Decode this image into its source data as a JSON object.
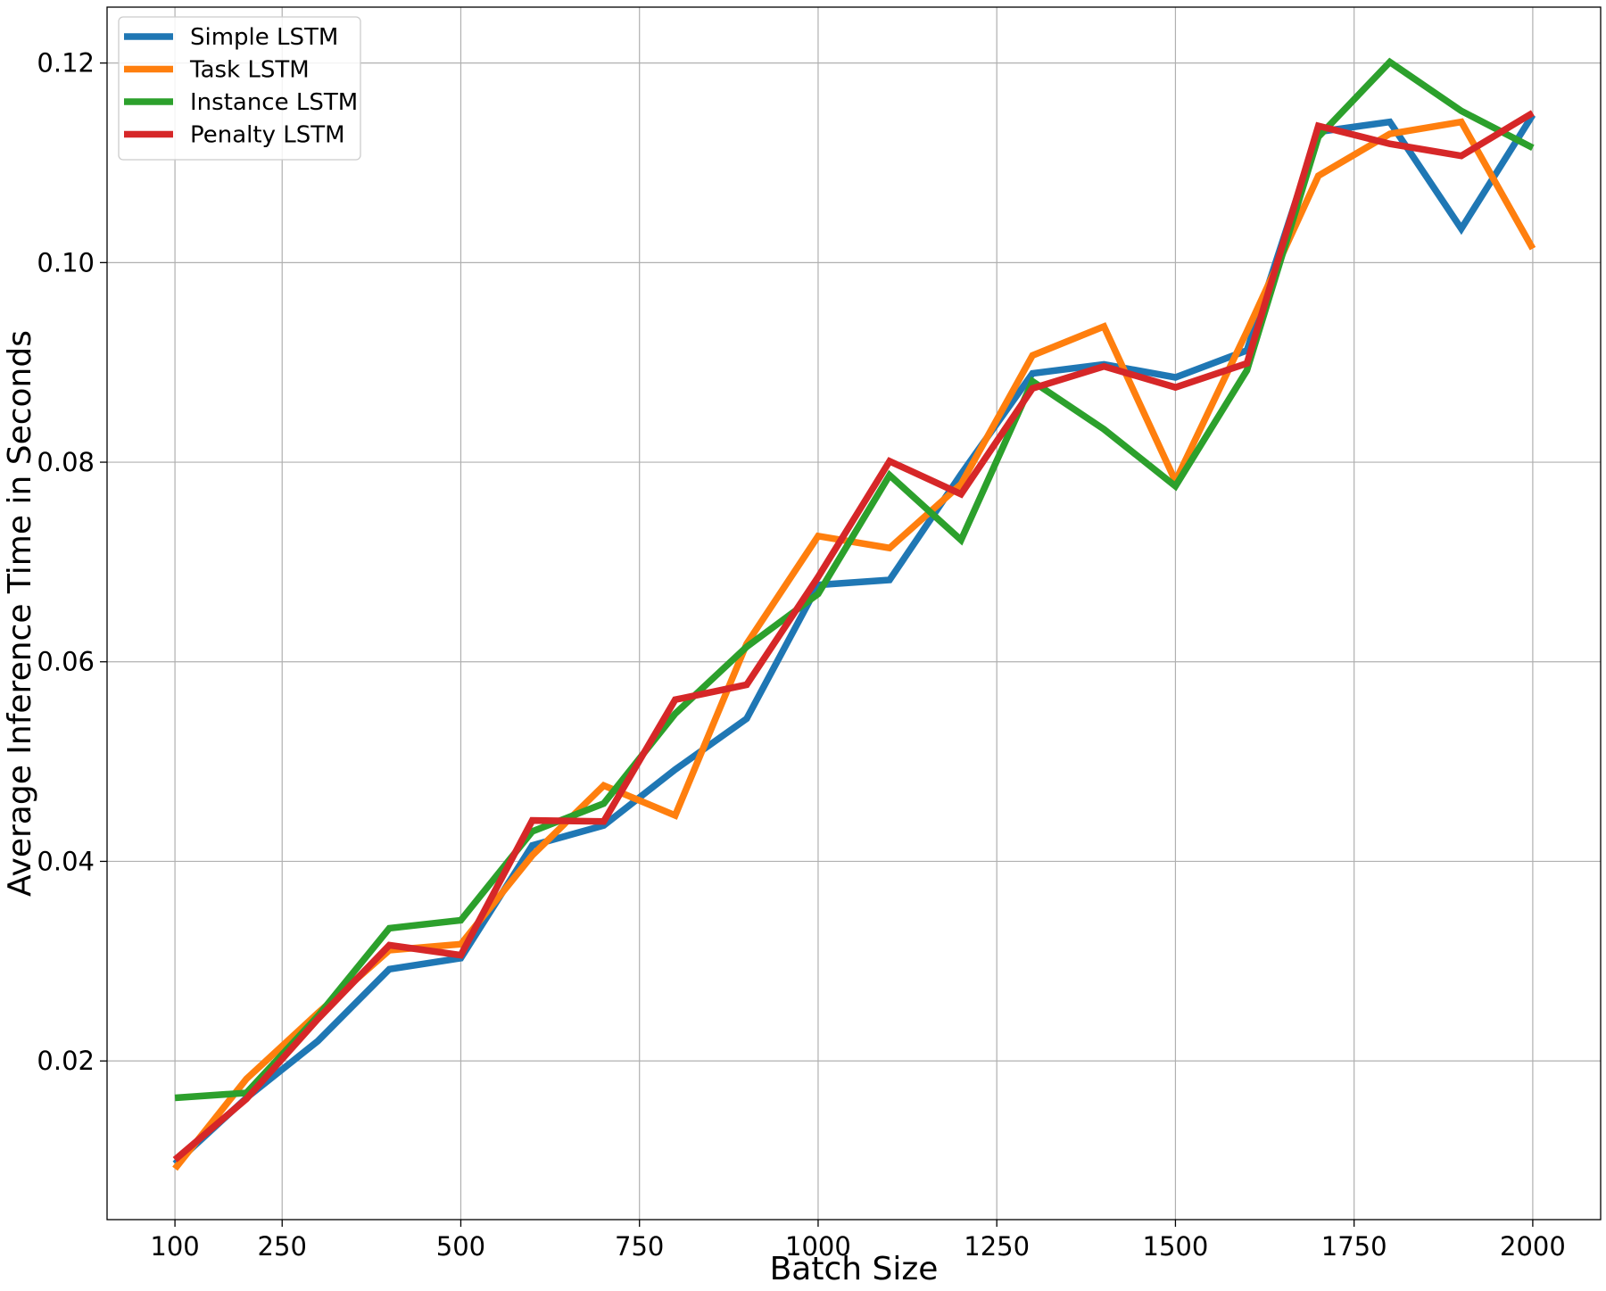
{
  "chart_data": {
    "type": "line",
    "title": "",
    "xlabel": "Batch Size",
    "ylabel": "Average Inference Time in Seconds",
    "x": [
      100,
      200,
      300,
      400,
      500,
      600,
      700,
      800,
      900,
      1000,
      1100,
      1200,
      1300,
      1400,
      1500,
      1600,
      1700,
      1800,
      1900,
      2000
    ],
    "xticks": [
      100,
      250,
      500,
      750,
      1000,
      1250,
      1500,
      1750,
      2000
    ],
    "yticks": [
      0.02,
      0.04,
      0.06,
      0.08,
      0.1,
      0.12
    ],
    "ytick_labels": [
      "0.02",
      "0.04",
      "0.06",
      "0.08",
      "0.10",
      "0.12"
    ],
    "xlim": [
      5,
      2095
    ],
    "ylim": [
      0.0041,
      0.1256
    ],
    "grid": true,
    "legend_position": "top-left",
    "series": [
      {
        "name": "Simple LSTM",
        "color": "#1f77b4",
        "values": [
          0.0097,
          0.0163,
          0.022,
          0.0292,
          0.0303,
          0.0416,
          0.0436,
          0.0492,
          0.0543,
          0.0677,
          0.0682,
          0.0788,
          0.0889,
          0.0898,
          0.0885,
          0.0912,
          0.1131,
          0.1141,
          0.1034,
          0.1148
        ]
      },
      {
        "name": "Task LSTM",
        "color": "#ff7f0e",
        "values": [
          0.0092,
          0.0182,
          0.0248,
          0.0311,
          0.0317,
          0.0406,
          0.0476,
          0.0446,
          0.0618,
          0.0726,
          0.0714,
          0.0778,
          0.0907,
          0.0936,
          0.0781,
          0.0931,
          0.1087,
          0.1129,
          0.1141,
          0.1014
        ]
      },
      {
        "name": "Instance LSTM",
        "color": "#2ca02c",
        "values": [
          0.0163,
          0.0168,
          0.0245,
          0.0333,
          0.0341,
          0.043,
          0.0458,
          0.0548,
          0.0615,
          0.0668,
          0.0787,
          0.0722,
          0.0881,
          0.0833,
          0.0776,
          0.0892,
          0.1126,
          0.1201,
          0.1152,
          0.1115
        ]
      },
      {
        "name": "Penalty LSTM",
        "color": "#d62728",
        "values": [
          0.0101,
          0.0162,
          0.0242,
          0.0316,
          0.0306,
          0.0441,
          0.044,
          0.0562,
          0.0577,
          0.0685,
          0.0801,
          0.0768,
          0.0874,
          0.0896,
          0.0875,
          0.0899,
          0.1137,
          0.1119,
          0.1107,
          0.115
        ]
      }
    ]
  }
}
